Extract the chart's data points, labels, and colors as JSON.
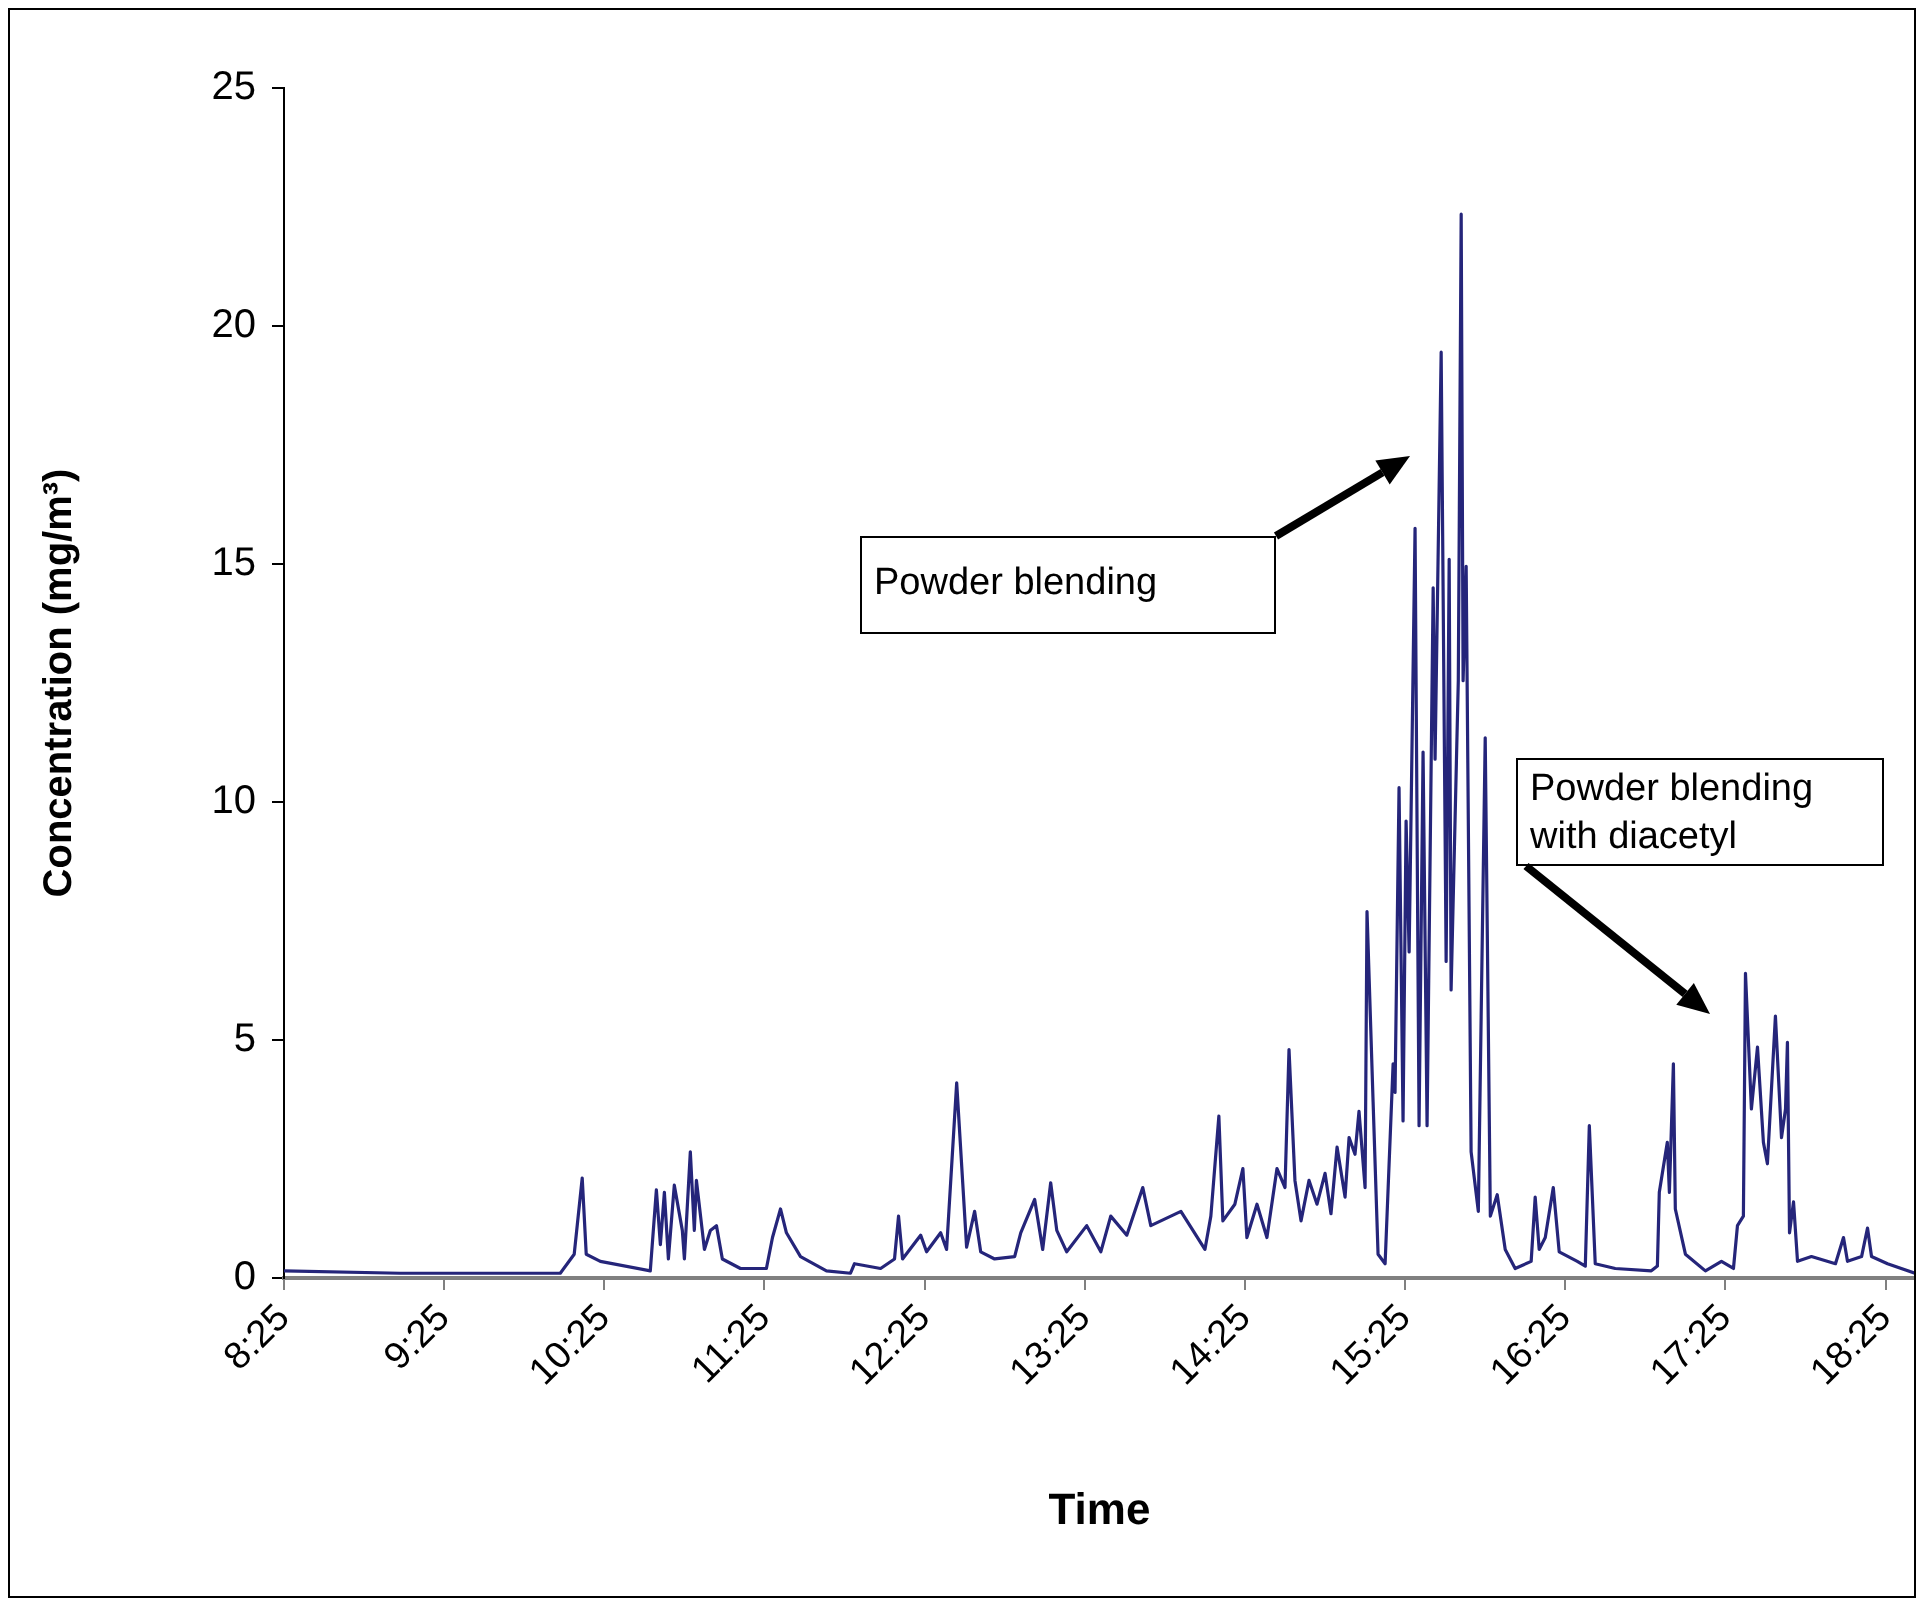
{
  "chart_data": {
    "type": "line",
    "xlabel": "Time",
    "ylabel": "Concentration (mg/m³)",
    "xlim": [
      8.417,
      18.6
    ],
    "xticks": [
      {
        "value": 8.417,
        "label": "8:25"
      },
      {
        "value": 9.417,
        "label": "9:25"
      },
      {
        "value": 10.417,
        "label": "10:25"
      },
      {
        "value": 11.417,
        "label": "11:25"
      },
      {
        "value": 12.417,
        "label": "12:25"
      },
      {
        "value": 13.417,
        "label": "13:25"
      },
      {
        "value": 14.417,
        "label": "14:25"
      },
      {
        "value": 15.417,
        "label": "15:25"
      },
      {
        "value": 16.417,
        "label": "16:25"
      },
      {
        "value": 17.417,
        "label": "17:25"
      },
      {
        "value": 18.417,
        "label": "18:25"
      }
    ],
    "ylim": [
      0,
      25
    ],
    "yticks": [
      0,
      5,
      10,
      15,
      20,
      25
    ],
    "grid": false,
    "legend": false,
    "marker": "none",
    "line_style": "solid",
    "annotations": [
      "Powder blending",
      "Powder blending with diacetyl"
    ],
    "series": [
      {
        "color": "#25257a",
        "x": [
          8.417,
          9.142,
          9.767,
          10.142,
          10.229,
          10.279,
          10.304,
          10.392,
          10.704,
          10.742,
          10.767,
          10.792,
          10.817,
          10.854,
          10.904,
          10.917,
          10.954,
          10.979,
          10.992,
          11.042,
          11.079,
          11.117,
          11.154,
          11.267,
          11.429,
          11.467,
          11.517,
          11.554,
          11.642,
          11.804,
          11.954,
          11.979,
          12.142,
          12.229,
          12.254,
          12.279,
          12.392,
          12.429,
          12.517,
          12.554,
          12.617,
          12.679,
          12.729,
          12.767,
          12.854,
          12.979,
          13.017,
          13.104,
          13.154,
          13.204,
          13.242,
          13.304,
          13.429,
          13.517,
          13.579,
          13.679,
          13.779,
          13.829,
          14.017,
          14.167,
          14.204,
          14.254,
          14.279,
          14.354,
          14.404,
          14.429,
          14.492,
          14.554,
          14.617,
          14.667,
          14.692,
          14.729,
          14.767,
          14.817,
          14.867,
          14.917,
          14.954,
          14.992,
          15.042,
          15.067,
          15.104,
          15.129,
          15.167,
          15.179,
          15.217,
          15.248,
          15.292,
          15.342,
          15.354,
          15.379,
          15.404,
          15.423,
          15.442,
          15.479,
          15.504,
          15.529,
          15.554,
          15.592,
          15.604,
          15.642,
          15.673,
          15.692,
          15.704,
          15.749,
          15.767,
          15.779,
          15.798,
          15.829,
          15.874,
          15.917,
          15.949,
          15.992,
          16.042,
          16.104,
          16.204,
          16.229,
          16.254,
          16.292,
          16.342,
          16.379,
          16.492,
          16.542,
          16.567,
          16.604,
          16.729,
          16.954,
          16.992,
          17.004,
          17.054,
          17.067,
          17.092,
          17.104,
          17.167,
          17.292,
          17.392,
          17.467,
          17.492,
          17.529,
          17.542,
          17.579,
          17.617,
          17.654,
          17.679,
          17.729,
          17.767,
          17.792,
          17.804,
          17.817,
          17.842,
          17.867,
          17.954,
          18.104,
          18.154,
          18.179,
          18.267,
          18.304,
          18.329,
          18.429,
          18.6
        ],
        "values": [
          0.15,
          0.1,
          0.1,
          0.1,
          0.5,
          2.1,
          0.5,
          0.35,
          0.15,
          1.85,
          0.7,
          1.8,
          0.4,
          1.95,
          1.0,
          0.4,
          2.65,
          1.0,
          2.05,
          0.6,
          1.0,
          1.1,
          0.4,
          0.2,
          0.2,
          0.85,
          1.45,
          0.95,
          0.45,
          0.15,
          0.1,
          0.3,
          0.2,
          0.4,
          1.3,
          0.4,
          0.9,
          0.55,
          0.95,
          0.6,
          4.1,
          0.65,
          1.4,
          0.55,
          0.4,
          0.45,
          0.95,
          1.65,
          0.6,
          2.0,
          1.0,
          0.55,
          1.1,
          0.55,
          1.3,
          0.9,
          1.9,
          1.1,
          1.4,
          0.6,
          1.3,
          3.4,
          1.2,
          1.55,
          2.3,
          0.85,
          1.55,
          0.85,
          2.3,
          1.9,
          4.8,
          2.05,
          1.2,
          2.05,
          1.55,
          2.2,
          1.35,
          2.75,
          1.7,
          2.95,
          2.6,
          3.5,
          1.9,
          7.7,
          3.7,
          0.5,
          0.3,
          4.5,
          3.9,
          10.3,
          3.3,
          9.6,
          6.85,
          15.75,
          3.2,
          11.05,
          3.2,
          14.5,
          10.9,
          19.45,
          6.65,
          15.1,
          6.05,
          12.55,
          22.35,
          12.55,
          14.95,
          2.65,
          1.4,
          11.35,
          1.3,
          1.75,
          0.6,
          0.2,
          0.35,
          1.7,
          0.6,
          0.85,
          1.9,
          0.55,
          0.35,
          0.25,
          3.2,
          0.3,
          0.2,
          0.15,
          0.25,
          1.8,
          2.85,
          1.8,
          4.5,
          1.45,
          0.5,
          0.15,
          0.35,
          0.2,
          1.1,
          1.3,
          6.4,
          3.55,
          4.85,
          2.85,
          2.4,
          5.5,
          2.95,
          3.55,
          4.95,
          0.95,
          1.6,
          0.35,
          0.45,
          0.3,
          0.85,
          0.35,
          0.45,
          1.05,
          0.45,
          0.3,
          0.1
        ]
      }
    ]
  }
}
